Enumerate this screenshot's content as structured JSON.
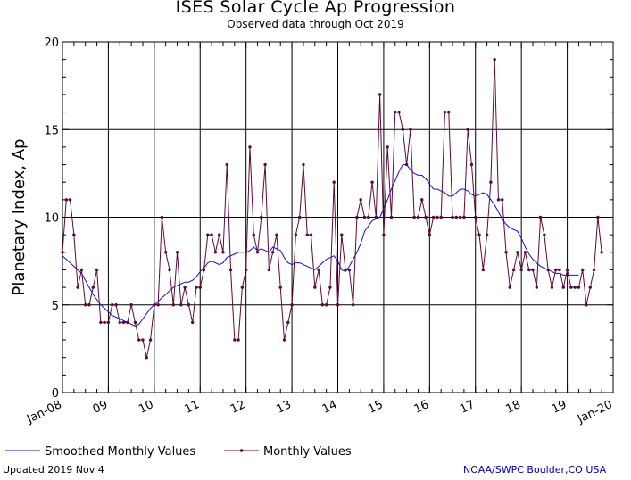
{
  "title": "ISES Solar Cycle Ap Progression",
  "subtitle": "Observed data through Oct 2019",
  "footer": {
    "updated": "Updated 2019 Nov  4",
    "credit": "NOAA/SWPC Boulder,CO USA"
  },
  "colors": {
    "smoothed": "#1010d0",
    "monthly": "#5a0a3a",
    "grid": "#000000"
  },
  "chart_data": {
    "type": "line",
    "title": "ISES Solar Cycle Ap Progression",
    "subtitle": "Observed data through Oct 2019",
    "ylabel": "Planetary Index, Ap",
    "xlabel": "",
    "ylim": [
      0,
      20
    ],
    "yticks": [
      0,
      5,
      10,
      15,
      20
    ],
    "x_start": "2008-01",
    "x_end": "2020-01",
    "xtick_labels": [
      "Jan-08",
      "09",
      "10",
      "11",
      "12",
      "13",
      "14",
      "15",
      "16",
      "17",
      "18",
      "19",
      "Jan-20"
    ],
    "grid": true,
    "legend": "bottom-left",
    "series": [
      {
        "name": "Smoothed Monthly Values",
        "style": "line",
        "values": [
          7.8,
          7.6,
          7.4,
          7.2,
          7.0,
          6.8,
          6.4,
          6.0,
          5.6,
          5.3,
          5.0,
          4.8,
          4.6,
          4.4,
          4.3,
          4.2,
          4.1,
          4.0,
          3.9,
          3.8,
          3.9,
          4.2,
          4.5,
          4.8,
          5.0,
          5.2,
          5.4,
          5.6,
          5.8,
          6.0,
          6.1,
          6.2,
          6.3,
          6.3,
          6.4,
          6.6,
          6.9,
          7.1,
          7.4,
          7.5,
          7.4,
          7.3,
          7.4,
          7.7,
          7.8,
          7.9,
          8.0,
          8.0,
          8.0,
          8.1,
          8.3,
          8.1,
          8.2,
          8.1,
          8.0,
          8.3,
          8.2,
          8.1,
          7.7,
          7.4,
          7.3,
          7.4,
          7.4,
          7.3,
          7.2,
          7.1,
          7.0,
          7.2,
          7.4,
          7.6,
          7.7,
          7.8,
          7.5,
          7.0,
          6.9,
          7.2,
          7.6,
          8.0,
          8.5,
          9.2,
          9.5,
          9.8,
          9.9,
          10.0,
          10.5,
          11.0,
          11.6,
          12.1,
          12.6,
          13.0,
          13.0,
          12.7,
          12.5,
          12.4,
          12.4,
          12.2,
          11.9,
          11.6,
          11.6,
          11.5,
          11.4,
          11.2,
          11.2,
          11.4,
          11.6,
          11.6,
          11.5,
          11.3,
          11.2,
          11.3,
          11.4,
          11.3,
          11.0,
          10.7,
          10.3,
          9.9,
          9.6,
          9.4,
          9.3,
          9.2,
          8.8,
          8.3,
          7.9,
          7.6,
          7.4,
          7.2,
          7.1,
          7.0,
          6.9,
          6.8,
          6.8,
          6.7,
          6.7,
          6.7,
          6.7,
          6.7
        ]
      },
      {
        "name": "Monthly Values",
        "style": "line-marker",
        "values": [
          8,
          11,
          11,
          9,
          6,
          7,
          5,
          5,
          6,
          7,
          4,
          4,
          4,
          5,
          5,
          4,
          4,
          4,
          5,
          4,
          3,
          3,
          2,
          3,
          5,
          5,
          10,
          8,
          7,
          5,
          8,
          5,
          6,
          5,
          4,
          6,
          6,
          7,
          9,
          9,
          8,
          9,
          8,
          13,
          7,
          3,
          3,
          6,
          7,
          14,
          9,
          8,
          10,
          13,
          7,
          8,
          9,
          6,
          3,
          4,
          5,
          9,
          10,
          13,
          9,
          9,
          6,
          7,
          5,
          5,
          6,
          12,
          5,
          9,
          7,
          7,
          5,
          10,
          11,
          10,
          10,
          12,
          10,
          17,
          9,
          14,
          10,
          16,
          16,
          15,
          13,
          15,
          10,
          10,
          11,
          10,
          9,
          10,
          10,
          10,
          16,
          16,
          10,
          10,
          10,
          10,
          15,
          13,
          10,
          9,
          7,
          9,
          12,
          19,
          11,
          11,
          8,
          6,
          7,
          8,
          7,
          8,
          7,
          7,
          6,
          10,
          9,
          7,
          6,
          7,
          7,
          6,
          7,
          6,
          6,
          6,
          7,
          5,
          6,
          7,
          10,
          8
        ]
      }
    ]
  }
}
